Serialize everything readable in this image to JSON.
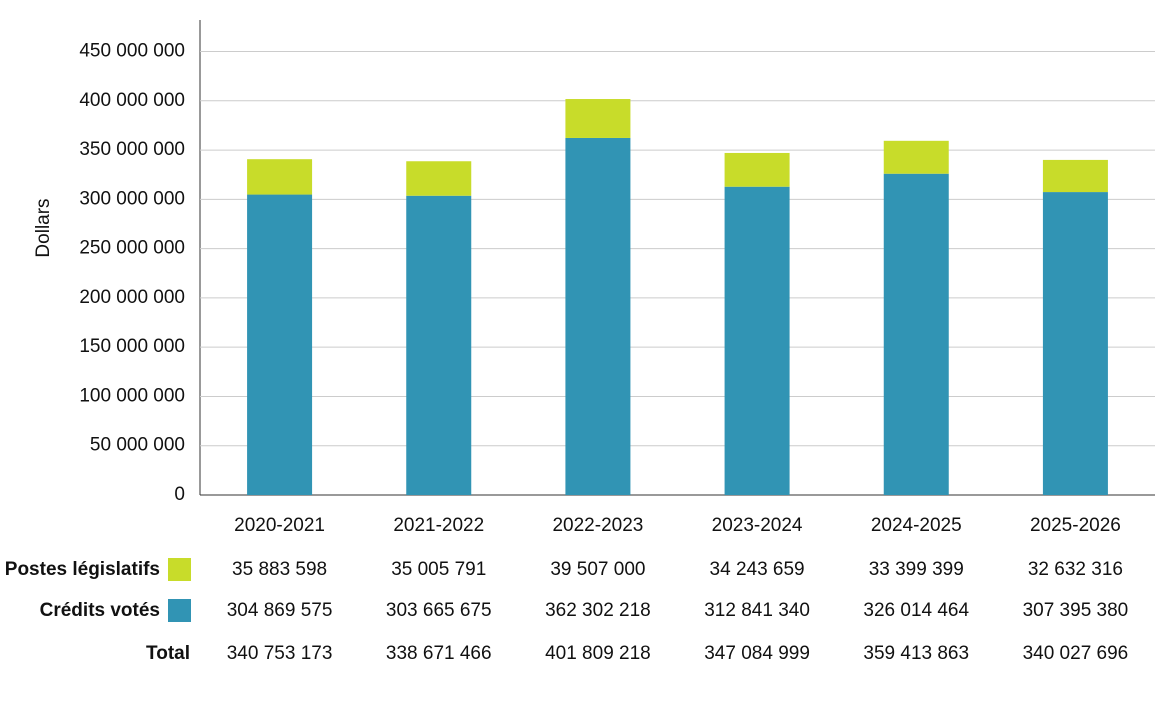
{
  "chart_data": {
    "type": "stacked_bar",
    "y_label": "Dollars",
    "categories": [
      "2020-2021",
      "2021-2022",
      "2022-2023",
      "2023-2024",
      "2024-2025",
      "2025-2026"
    ],
    "series": [
      {
        "name": "Crédits votés",
        "color": "#3194b4",
        "values": [
          304869575,
          303665675,
          362302218,
          312841340,
          326014464,
          307395380
        ],
        "value_labels": [
          "304 869 575",
          "303 665 675",
          "362 302 218",
          "312 841 340",
          "326 014 464",
          "307 395 380"
        ]
      },
      {
        "name": "Postes législatifs",
        "color": "#c8dc2a",
        "values": [
          35883598,
          35005791,
          39507000,
          34243659,
          33399399,
          32632316
        ],
        "value_labels": [
          "35 883 598",
          "35 005 791",
          "39 507 000",
          "34 243 659",
          "33 399 399",
          "32 632 316"
        ]
      }
    ],
    "total": {
      "name": "Total",
      "values": [
        340753173,
        338671466,
        401809218,
        347084999,
        359413863,
        340027696
      ],
      "value_labels": [
        "340 753 173",
        "338 671 466",
        "401 809 218",
        "347 084 999",
        "359 413 863",
        "340 027 696"
      ]
    },
    "ylim": [
      0,
      482000000
    ],
    "yticks": [
      0,
      {
        "value": 50000000,
        "label": "50 000 000"
      },
      {
        "value": 100000000,
        "label": "100 000 000"
      },
      {
        "value": 150000000,
        "label": "150 000 000"
      },
      {
        "value": 200000000,
        "label": "200 000 000"
      },
      {
        "value": 250000000,
        "label": "250 000 000"
      },
      {
        "value": 300000000,
        "label": "300 000 000"
      },
      {
        "value": 350000000,
        "label": "350 000 000"
      },
      {
        "value": 400000000,
        "label": "400 000 000"
      },
      {
        "value": 450000000,
        "label": "450 000 000"
      }
    ],
    "grid": true
  }
}
